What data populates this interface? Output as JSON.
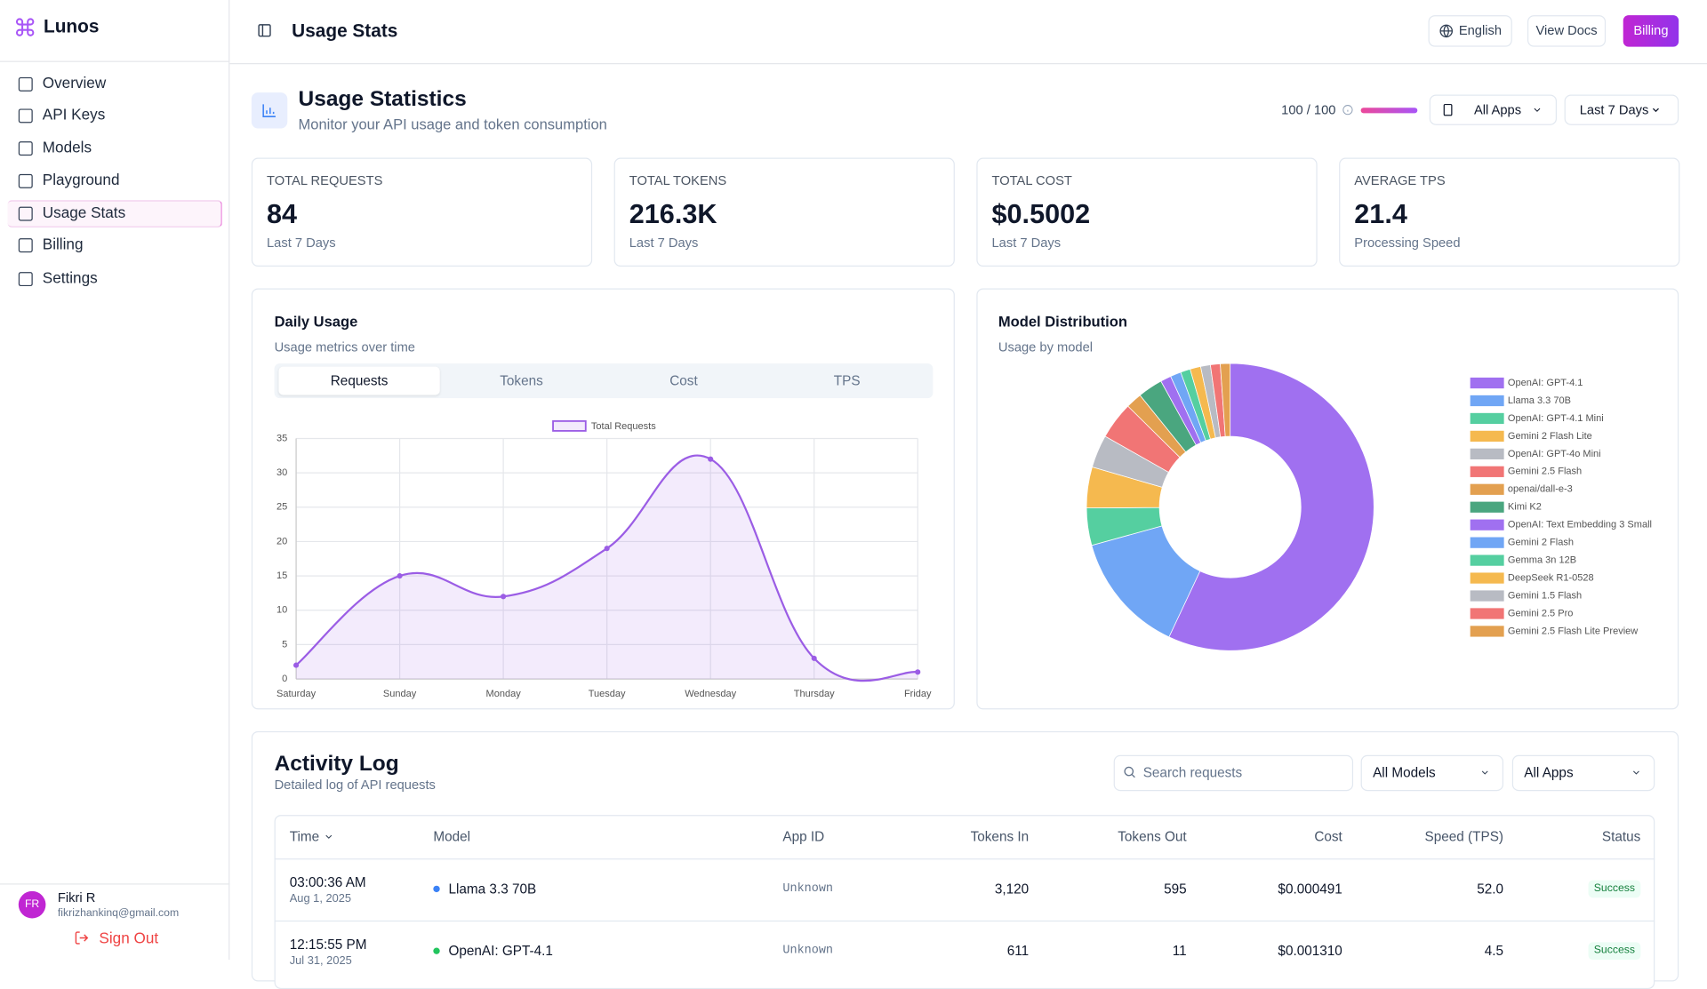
{
  "sidebar": {
    "brand": "Lunos",
    "nav": [
      "Overview",
      "API Keys",
      "Models",
      "Playground",
      "Usage Stats",
      "Billing",
      "Settings"
    ],
    "user": {
      "initials": "FR",
      "name": "Fikri R",
      "email": "fikrizhankinq@gmail.com",
      "sign_out": "Sign Out"
    }
  },
  "header": {
    "title": "Usage Stats",
    "language": "English",
    "docs": "View Docs",
    "billing": "Billing"
  },
  "page": {
    "title": "Usage Statistics",
    "subtitle": "Monitor your API usage and token consumption",
    "quota": "100 / 100",
    "app_filter": "All Apps",
    "range_filter": "Last 7 Days"
  },
  "stats": [
    {
      "label": "TOTAL REQUESTS",
      "value": "84",
      "note": "Last 7 Days"
    },
    {
      "label": "TOTAL TOKENS",
      "value": "216.3K",
      "note": "Last 7 Days"
    },
    {
      "label": "TOTAL COST",
      "value": "$0.5002",
      "note": "Last 7 Days"
    },
    {
      "label": "AVERAGE TPS",
      "value": "21.4",
      "note": "Processing Speed"
    }
  ],
  "daily_usage": {
    "title": "Daily Usage",
    "subtitle": "Usage metrics over time",
    "tabs": [
      "Requests",
      "Tokens",
      "Cost",
      "TPS"
    ]
  },
  "model_distribution": {
    "title": "Model Distribution",
    "subtitle": "Usage by model"
  },
  "chart_data": [
    {
      "type": "line",
      "categories": [
        "Saturday",
        "Sunday",
        "Monday",
        "Tuesday",
        "Wednesday",
        "Thursday",
        "Friday"
      ],
      "series": [
        {
          "name": "Total Requests",
          "color": "#9b5de5",
          "values": [
            2,
            15,
            12,
            19,
            32,
            3,
            1
          ]
        }
      ],
      "ylim": [
        0,
        35
      ],
      "yticks": [
        0,
        5,
        10,
        15,
        20,
        25,
        30,
        35
      ],
      "grid": true
    },
    {
      "type": "pie",
      "categories": [
        "OpenAI: GPT-4.1",
        "Llama 3.3 70B",
        "OpenAI: GPT-4.1 Mini",
        "Gemini 2 Flash Lite",
        "OpenAI: GPT-4o Mini",
        "Gemini 2.5 Flash",
        "openai/dall-e-3",
        "Kimi K2",
        "OpenAI: Text Embedding 3 Small",
        "Gemini 2 Flash",
        "Gemma 3n 12B",
        "DeepSeek R1-0528",
        "Gemini 1.5 Flash",
        "Gemini 2.5 Pro",
        "Gemini 2.5 Flash Lite Preview"
      ],
      "values": [
        57,
        13.7,
        4.2,
        4.6,
        3.7,
        4.2,
        1.8,
        2.8,
        1.2,
        1.2,
        1.1,
        1.2,
        1.1,
        1.1,
        1.1
      ],
      "colors": [
        "#a070f0",
        "#70a6f5",
        "#55cfa0",
        "#f5b94f",
        "#b8bbc3",
        "#f17575",
        "#e3a050",
        "#4aa67f",
        "#a070f0",
        "#70a6f5",
        "#55cfa0",
        "#f5b94f",
        "#b8bbc3",
        "#f17575",
        "#e3a050"
      ]
    }
  ],
  "activity": {
    "title": "Activity Log",
    "subtitle": "Detailed log of API requests",
    "search_placeholder": "Search requests",
    "model_filter": "All Models",
    "app_filter": "All Apps",
    "columns": [
      "Time",
      "Model",
      "App ID",
      "Tokens In",
      "Tokens Out",
      "Cost",
      "Speed (TPS)",
      "Status"
    ],
    "rows": [
      {
        "time": "03:00:36 AM",
        "date": "Aug 1, 2025",
        "model": "Llama 3.3 70B",
        "model_color": "#3b82f6",
        "app_id": "Unknown",
        "tokens_in": "3,120",
        "tokens_out": "595",
        "cost": "$0.000491",
        "speed": "52.0",
        "status": "Success"
      },
      {
        "time": "12:15:55 PM",
        "date": "Jul 31, 2025",
        "model": "OpenAI: GPT-4.1",
        "model_color": "#22c55e",
        "app_id": "Unknown",
        "tokens_in": "611",
        "tokens_out": "11",
        "cost": "$0.001310",
        "speed": "4.5",
        "status": "Success"
      }
    ]
  }
}
